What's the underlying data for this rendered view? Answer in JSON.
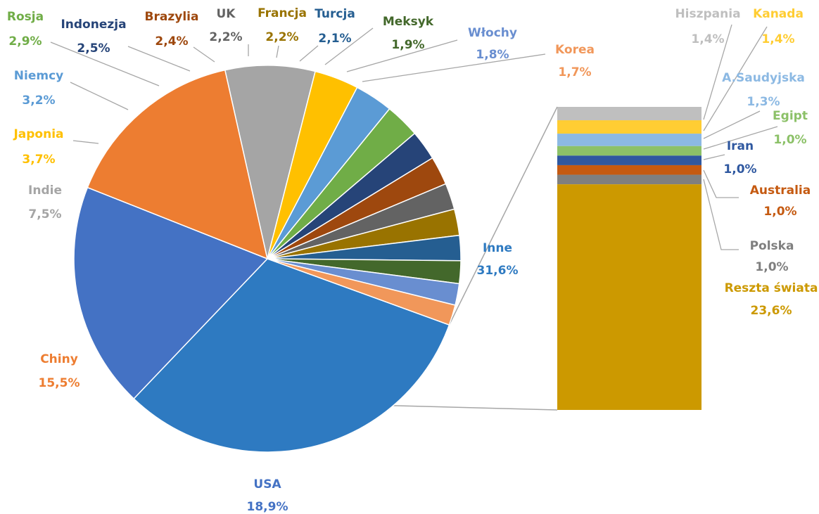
{
  "chart_data": {
    "type": "pie",
    "subtype": "bar-of-pie",
    "pie": {
      "slices": [
        {
          "label": "Inne",
          "value": 31.6,
          "value_label": "31,6%",
          "color": "#2E7AC1"
        },
        {
          "label": "USA",
          "value": 18.9,
          "value_label": "18,9%",
          "color": "#4472C4"
        },
        {
          "label": "Chiny",
          "value": 15.5,
          "value_label": "15,5%",
          "color": "#ED7D31"
        },
        {
          "label": "Indie",
          "value": 7.5,
          "value_label": "7,5%",
          "color": "#A5A5A5"
        },
        {
          "label": "Japonia",
          "value": 3.7,
          "value_label": "3,7%",
          "color": "#FFC000"
        },
        {
          "label": "Niemcy",
          "value": 3.2,
          "value_label": "3,2%",
          "color": "#5B9BD5"
        },
        {
          "label": "Rosja",
          "value": 2.9,
          "value_label": "2,9%",
          "color": "#70AD47"
        },
        {
          "label": "Indonezja",
          "value": 2.5,
          "value_label": "2,5%",
          "color": "#264478"
        },
        {
          "label": "Brazylia",
          "value": 2.4,
          "value_label": "2,4%",
          "color": "#9E480E"
        },
        {
          "label": "UK",
          "value": 2.2,
          "value_label": "2,2%",
          "color": "#636363"
        },
        {
          "label": "Francja",
          "value": 2.2,
          "value_label": "2,2%",
          "color": "#997300"
        },
        {
          "label": "Turcja",
          "value": 2.1,
          "value_label": "2,1%",
          "color": "#255E91"
        },
        {
          "label": "Meksyk",
          "value": 1.9,
          "value_label": "1,9%",
          "color": "#43682B"
        },
        {
          "label": "Włochy",
          "value": 1.8,
          "value_label": "1,8%",
          "color": "#698ED0"
        },
        {
          "label": "Korea",
          "value": 1.7,
          "value_label": "1,7%",
          "color": "#F1975A"
        }
      ]
    },
    "bar": {
      "slices": [
        {
          "label": "Hiszpania",
          "value": 1.4,
          "value_label": "1,4%",
          "color": "#BFBFBF"
        },
        {
          "label": "Kanada",
          "value": 1.4,
          "value_label": "1,4%",
          "color": "#FFCD33"
        },
        {
          "label": "A.Saudyjska",
          "value": 1.3,
          "value_label": "1,3%",
          "color": "#8CB9E3"
        },
        {
          "label": "Egipt",
          "value": 1.0,
          "value_label": "1,0%",
          "color": "#8CC168"
        },
        {
          "label": "Iran",
          "value": 1.0,
          "value_label": "1,0%",
          "color": "#2F58A0"
        },
        {
          "label": "Australia",
          "value": 1.0,
          "value_label": "1,0%",
          "color": "#C55A11"
        },
        {
          "label": "Polska",
          "value": 1.0,
          "value_label": "1,0%",
          "color": "#7F7F7F"
        },
        {
          "label": "Reszta świata",
          "value": 23.6,
          "value_label": "23,6%",
          "color": "#CC9900"
        }
      ]
    }
  }
}
